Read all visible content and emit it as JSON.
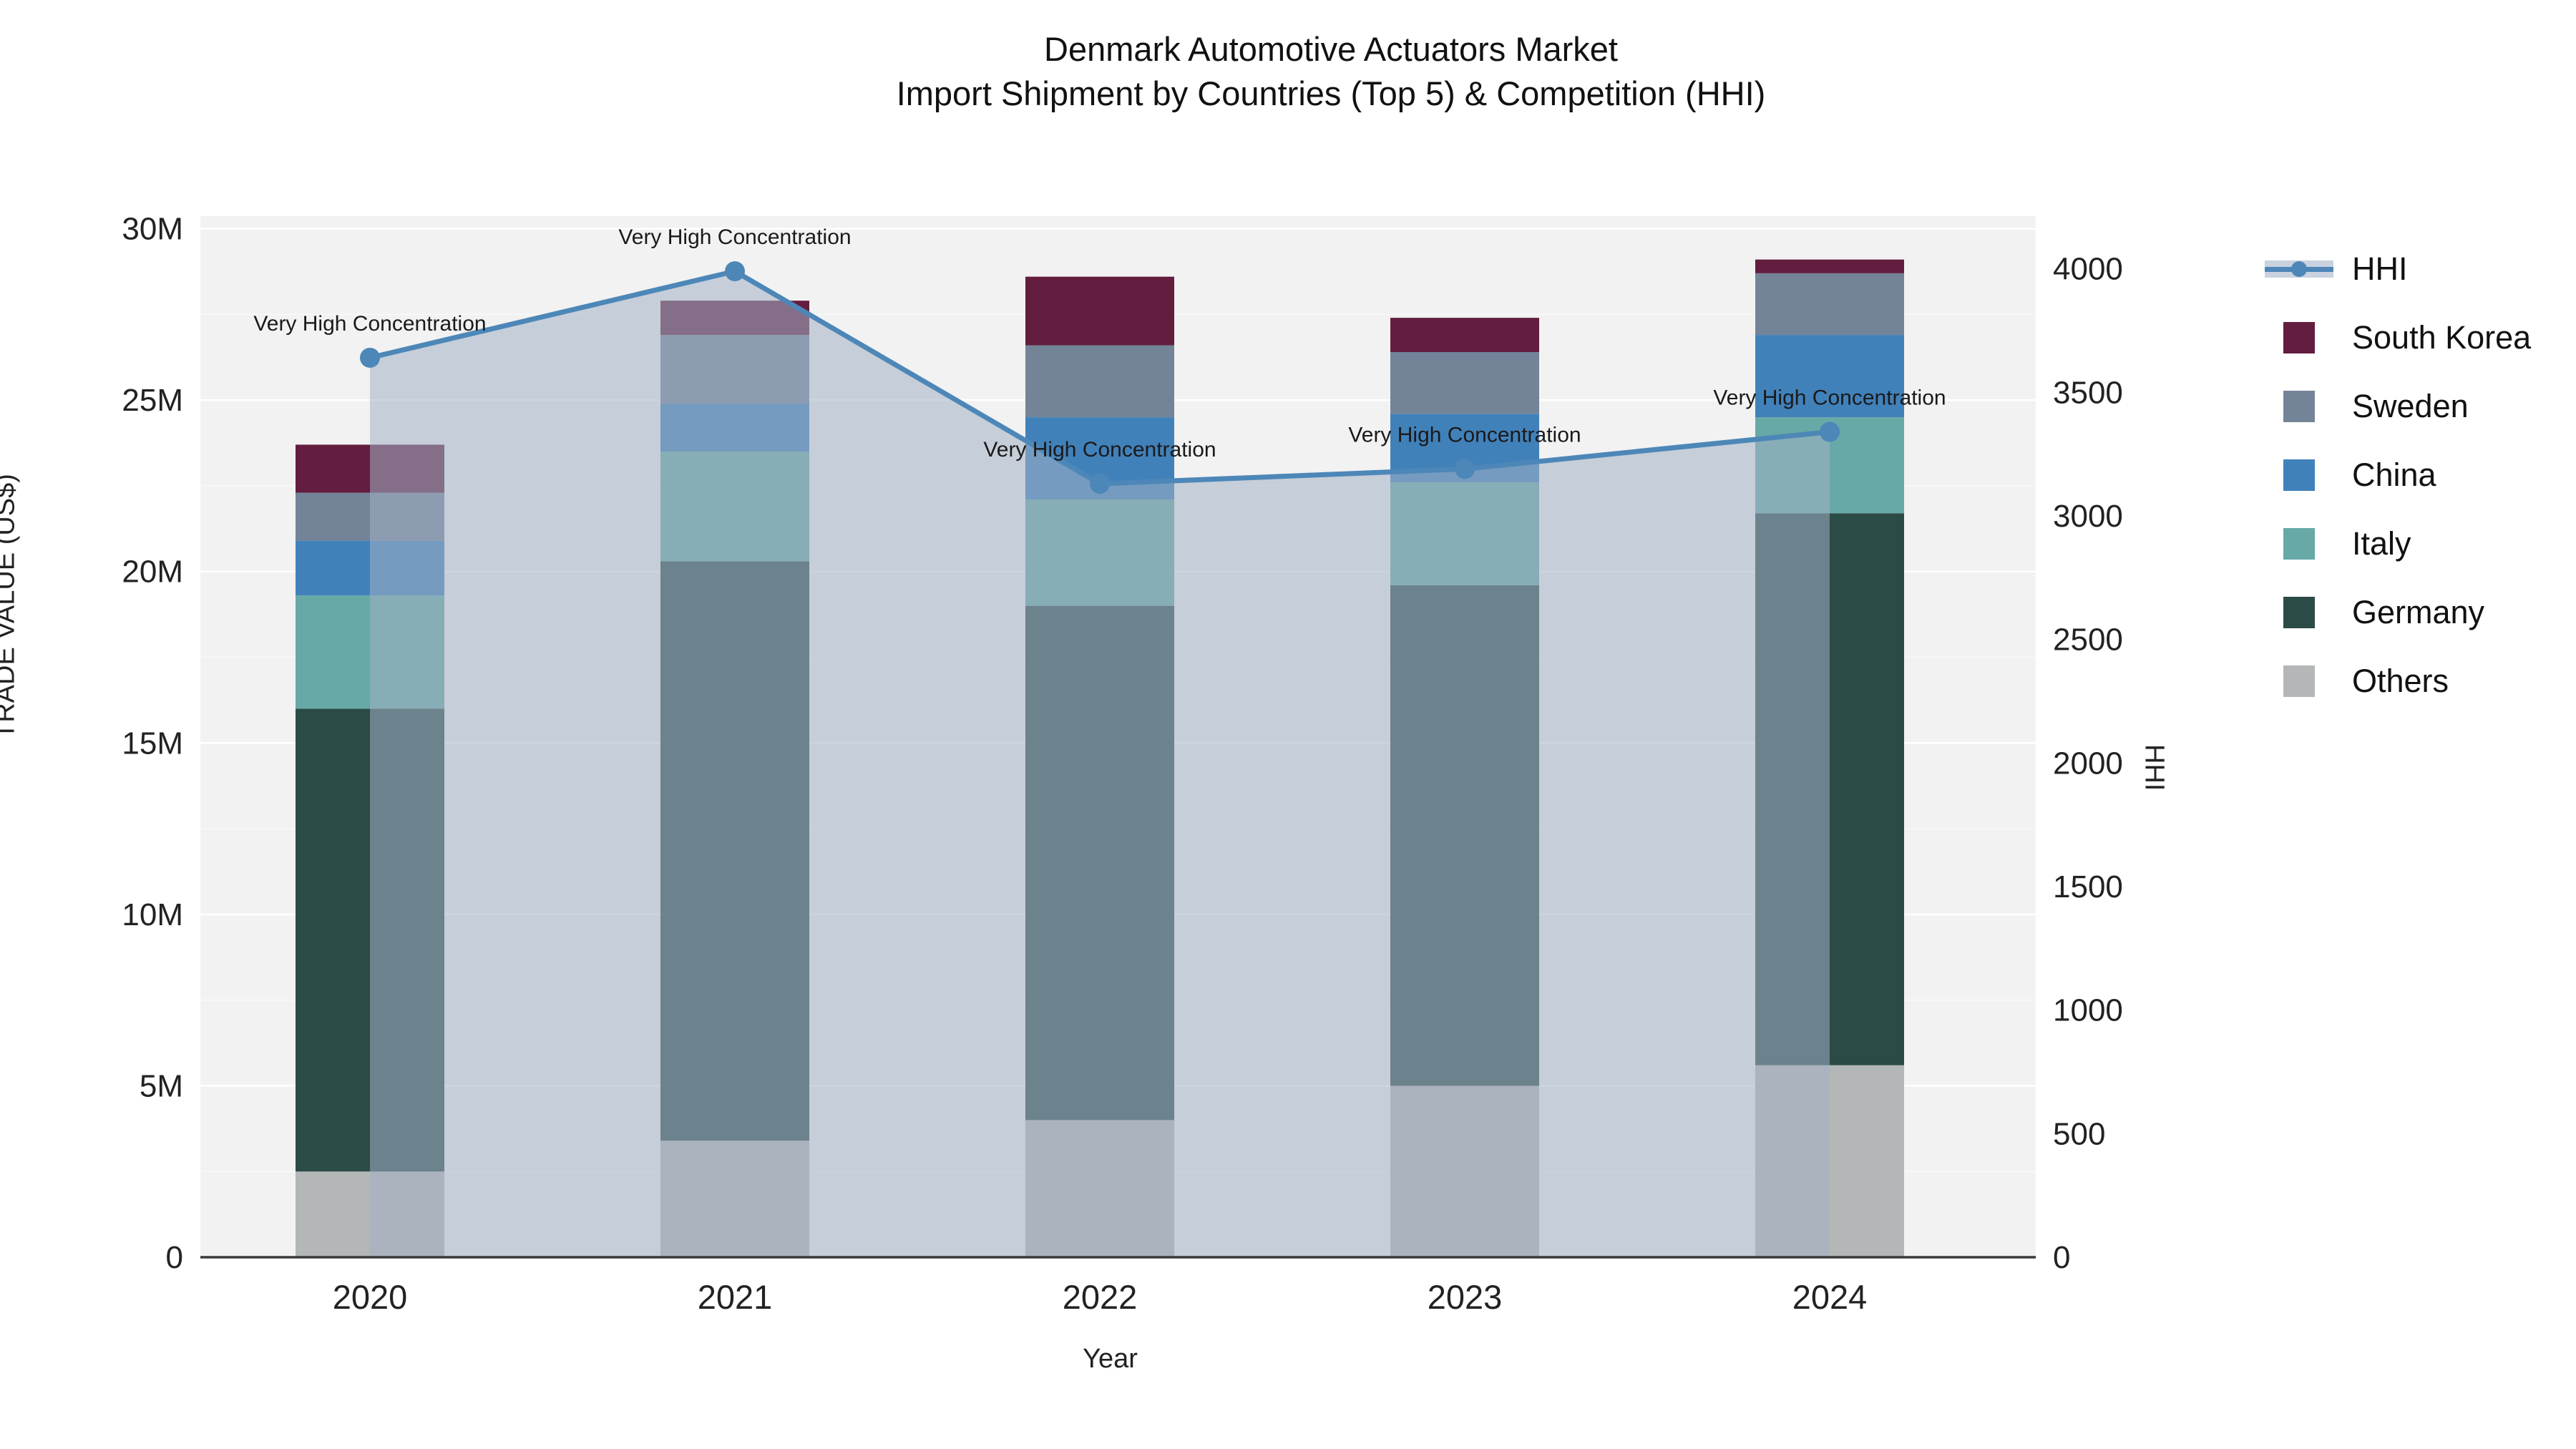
{
  "title": {
    "line1": "Denmark Automotive Actuators Market",
    "line2": "Import Shipment by Countries (Top 5) & Competition (HHI)"
  },
  "chart_data": {
    "type": "bar",
    "stacked": true,
    "title": "Denmark Automotive Actuators Market Import Shipment by Countries (Top 5) & Competition (HHI)",
    "xlabel": "Year",
    "ylabel": "TRADE VALUE (US$)",
    "y2label": "HHI",
    "categories": [
      "2020",
      "2021",
      "2022",
      "2023",
      "2024"
    ],
    "value_unit": "million US$",
    "series": [
      {
        "name": "Others",
        "color": "#b3b7b7",
        "values": [
          2.5,
          3.4,
          4.0,
          5.0,
          5.6
        ]
      },
      {
        "name": "Germany",
        "color": "#2b4b47",
        "values": [
          13.5,
          16.9,
          15.0,
          14.6,
          16.1
        ]
      },
      {
        "name": "Italy",
        "color": "#67a9a6",
        "values": [
          3.3,
          3.2,
          3.1,
          3.0,
          2.8
        ]
      },
      {
        "name": "China",
        "color": "#4181ba",
        "values": [
          1.6,
          1.4,
          2.4,
          2.0,
          2.4
        ]
      },
      {
        "name": "Sweden",
        "color": "#738499",
        "values": [
          1.4,
          2.0,
          2.1,
          1.8,
          1.8
        ]
      },
      {
        "name": "South Korea",
        "color": "#631d3e",
        "values": [
          1.4,
          1.0,
          2.0,
          1.0,
          0.4
        ]
      }
    ],
    "bar_totals": [
      23.7,
      27.9,
      28.6,
      27.4,
      29.1
    ],
    "line_series": {
      "name": "HHI",
      "axis": "right",
      "color": "#4d87b8",
      "area_color": "rgba(163,177,196,0.55)",
      "values": [
        3640,
        3990,
        3130,
        3190,
        3340
      ]
    },
    "annotations": [
      {
        "text": "Very High Concentration",
        "x": "2020"
      },
      {
        "text": "Very High Concentration",
        "x": "2021"
      },
      {
        "text": "Very High Concentration",
        "x": "2022"
      },
      {
        "text": "Very High Concentration",
        "x": "2023"
      },
      {
        "text": "Very High Concentration",
        "x": "2024"
      }
    ],
    "yticks": [
      {
        "value": 0,
        "label": "0"
      },
      {
        "value": 5,
        "label": "5M"
      },
      {
        "value": 10,
        "label": "10M"
      },
      {
        "value": 15,
        "label": "15M"
      },
      {
        "value": 20,
        "label": "20M"
      },
      {
        "value": 25,
        "label": "25M"
      },
      {
        "value": 30,
        "label": "30M"
      }
    ],
    "y2ticks": [
      {
        "value": 0,
        "label": "0"
      },
      {
        "value": 500,
        "label": "500"
      },
      {
        "value": 1000,
        "label": "1000"
      },
      {
        "value": 1500,
        "label": "1500"
      },
      {
        "value": 2000,
        "label": "2000"
      },
      {
        "value": 2500,
        "label": "2500"
      },
      {
        "value": 3000,
        "label": "3000"
      },
      {
        "value": 3500,
        "label": "3500"
      },
      {
        "value": 4000,
        "label": "4000"
      }
    ],
    "ylim": [
      0,
      30.2
    ],
    "y2lim": [
      0,
      4190
    ],
    "grid": true,
    "plot_bg": "#f2f2f2",
    "grid_color": "#ffffff",
    "axis_line_color": "#3a3a3a",
    "legend_position": "right",
    "legend": [
      {
        "name": "HHI",
        "kind": "line"
      },
      {
        "name": "South Korea",
        "kind": "swatch",
        "color": "#631d3e"
      },
      {
        "name": "Sweden",
        "kind": "swatch",
        "color": "#738499"
      },
      {
        "name": "China",
        "kind": "swatch",
        "color": "#4181ba"
      },
      {
        "name": "Italy",
        "kind": "swatch",
        "color": "#67a9a6"
      },
      {
        "name": "Germany",
        "kind": "swatch",
        "color": "#2b4b47"
      },
      {
        "name": "Others",
        "kind": "swatch",
        "color": "#b3b7b7"
      }
    ]
  }
}
